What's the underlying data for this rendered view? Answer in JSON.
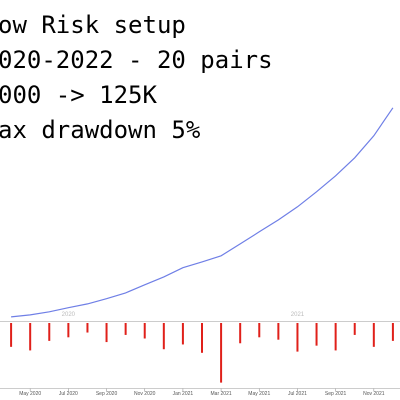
{
  "chart_data": [
    {
      "type": "line",
      "annotations": [
        "ow Risk setup",
        "020-2022 - 20 pairs",
        "000 -> 125K",
        "ax drawdown 5%"
      ],
      "x": [
        "2020-04",
        "2020-05",
        "2020-06",
        "2020-07",
        "2020-08",
        "2020-09",
        "2020-10",
        "2020-11",
        "2020-12",
        "2021-01",
        "2021-02",
        "2021-03",
        "2021-04",
        "2021-05",
        "2021-06",
        "2021-07",
        "2021-08",
        "2021-09",
        "2021-10",
        "2021-11",
        "2021-12"
      ],
      "values": [
        5500,
        6600,
        8300,
        10500,
        12600,
        15400,
        18600,
        23000,
        27300,
        32300,
        35500,
        38800,
        45300,
        51900,
        58400,
        65500,
        73700,
        82400,
        92200,
        104200,
        119500
      ],
      "color": "#6f7fe6",
      "xlim": [
        "2020-03",
        "2022-01"
      ],
      "ylim": [
        0,
        130000
      ],
      "year_ticks": [
        {
          "value": "2020-07",
          "label": "2020"
        },
        {
          "value": "2021-07",
          "label": "2021"
        }
      ]
    },
    {
      "type": "bar",
      "x": [
        "2020-04",
        "2020-05",
        "2020-06",
        "2020-07",
        "2020-08",
        "2020-09",
        "2020-10",
        "2020-11",
        "2020-12",
        "2021-01",
        "2021-02",
        "2021-03",
        "2021-04",
        "2021-05",
        "2021-06",
        "2021-07",
        "2021-08",
        "2021-09",
        "2021-10",
        "2021-11",
        "2021-12"
      ],
      "values": [
        -2.0,
        -2.3,
        -1.5,
        -1.2,
        -0.8,
        -1.6,
        -1.0,
        -1.3,
        -2.2,
        -1.8,
        -2.5,
        -5.0,
        -1.7,
        -1.2,
        -1.4,
        -2.4,
        -1.9,
        -2.3,
        -1.0,
        -2.0,
        -1.5
      ],
      "color": "#e0201a",
      "xlim": [
        "2020-03",
        "2022-01"
      ],
      "ylim": [
        -5.2,
        0
      ],
      "xticks": [
        {
          "value": "2020-05",
          "label": "May 2020"
        },
        {
          "value": "2020-07",
          "label": "Jul 2020"
        },
        {
          "value": "2020-09",
          "label": "Sep 2020"
        },
        {
          "value": "2020-11",
          "label": "Nov 2020"
        },
        {
          "value": "2021-01",
          "label": "Jan 2021"
        },
        {
          "value": "2021-03",
          "label": "Mar 2021"
        },
        {
          "value": "2021-05",
          "label": "May 2021"
        },
        {
          "value": "2021-07",
          "label": "Jul 2021"
        },
        {
          "value": "2021-09",
          "label": "Sep 2021"
        },
        {
          "value": "2021-11",
          "label": "Nov 2021"
        }
      ]
    }
  ]
}
